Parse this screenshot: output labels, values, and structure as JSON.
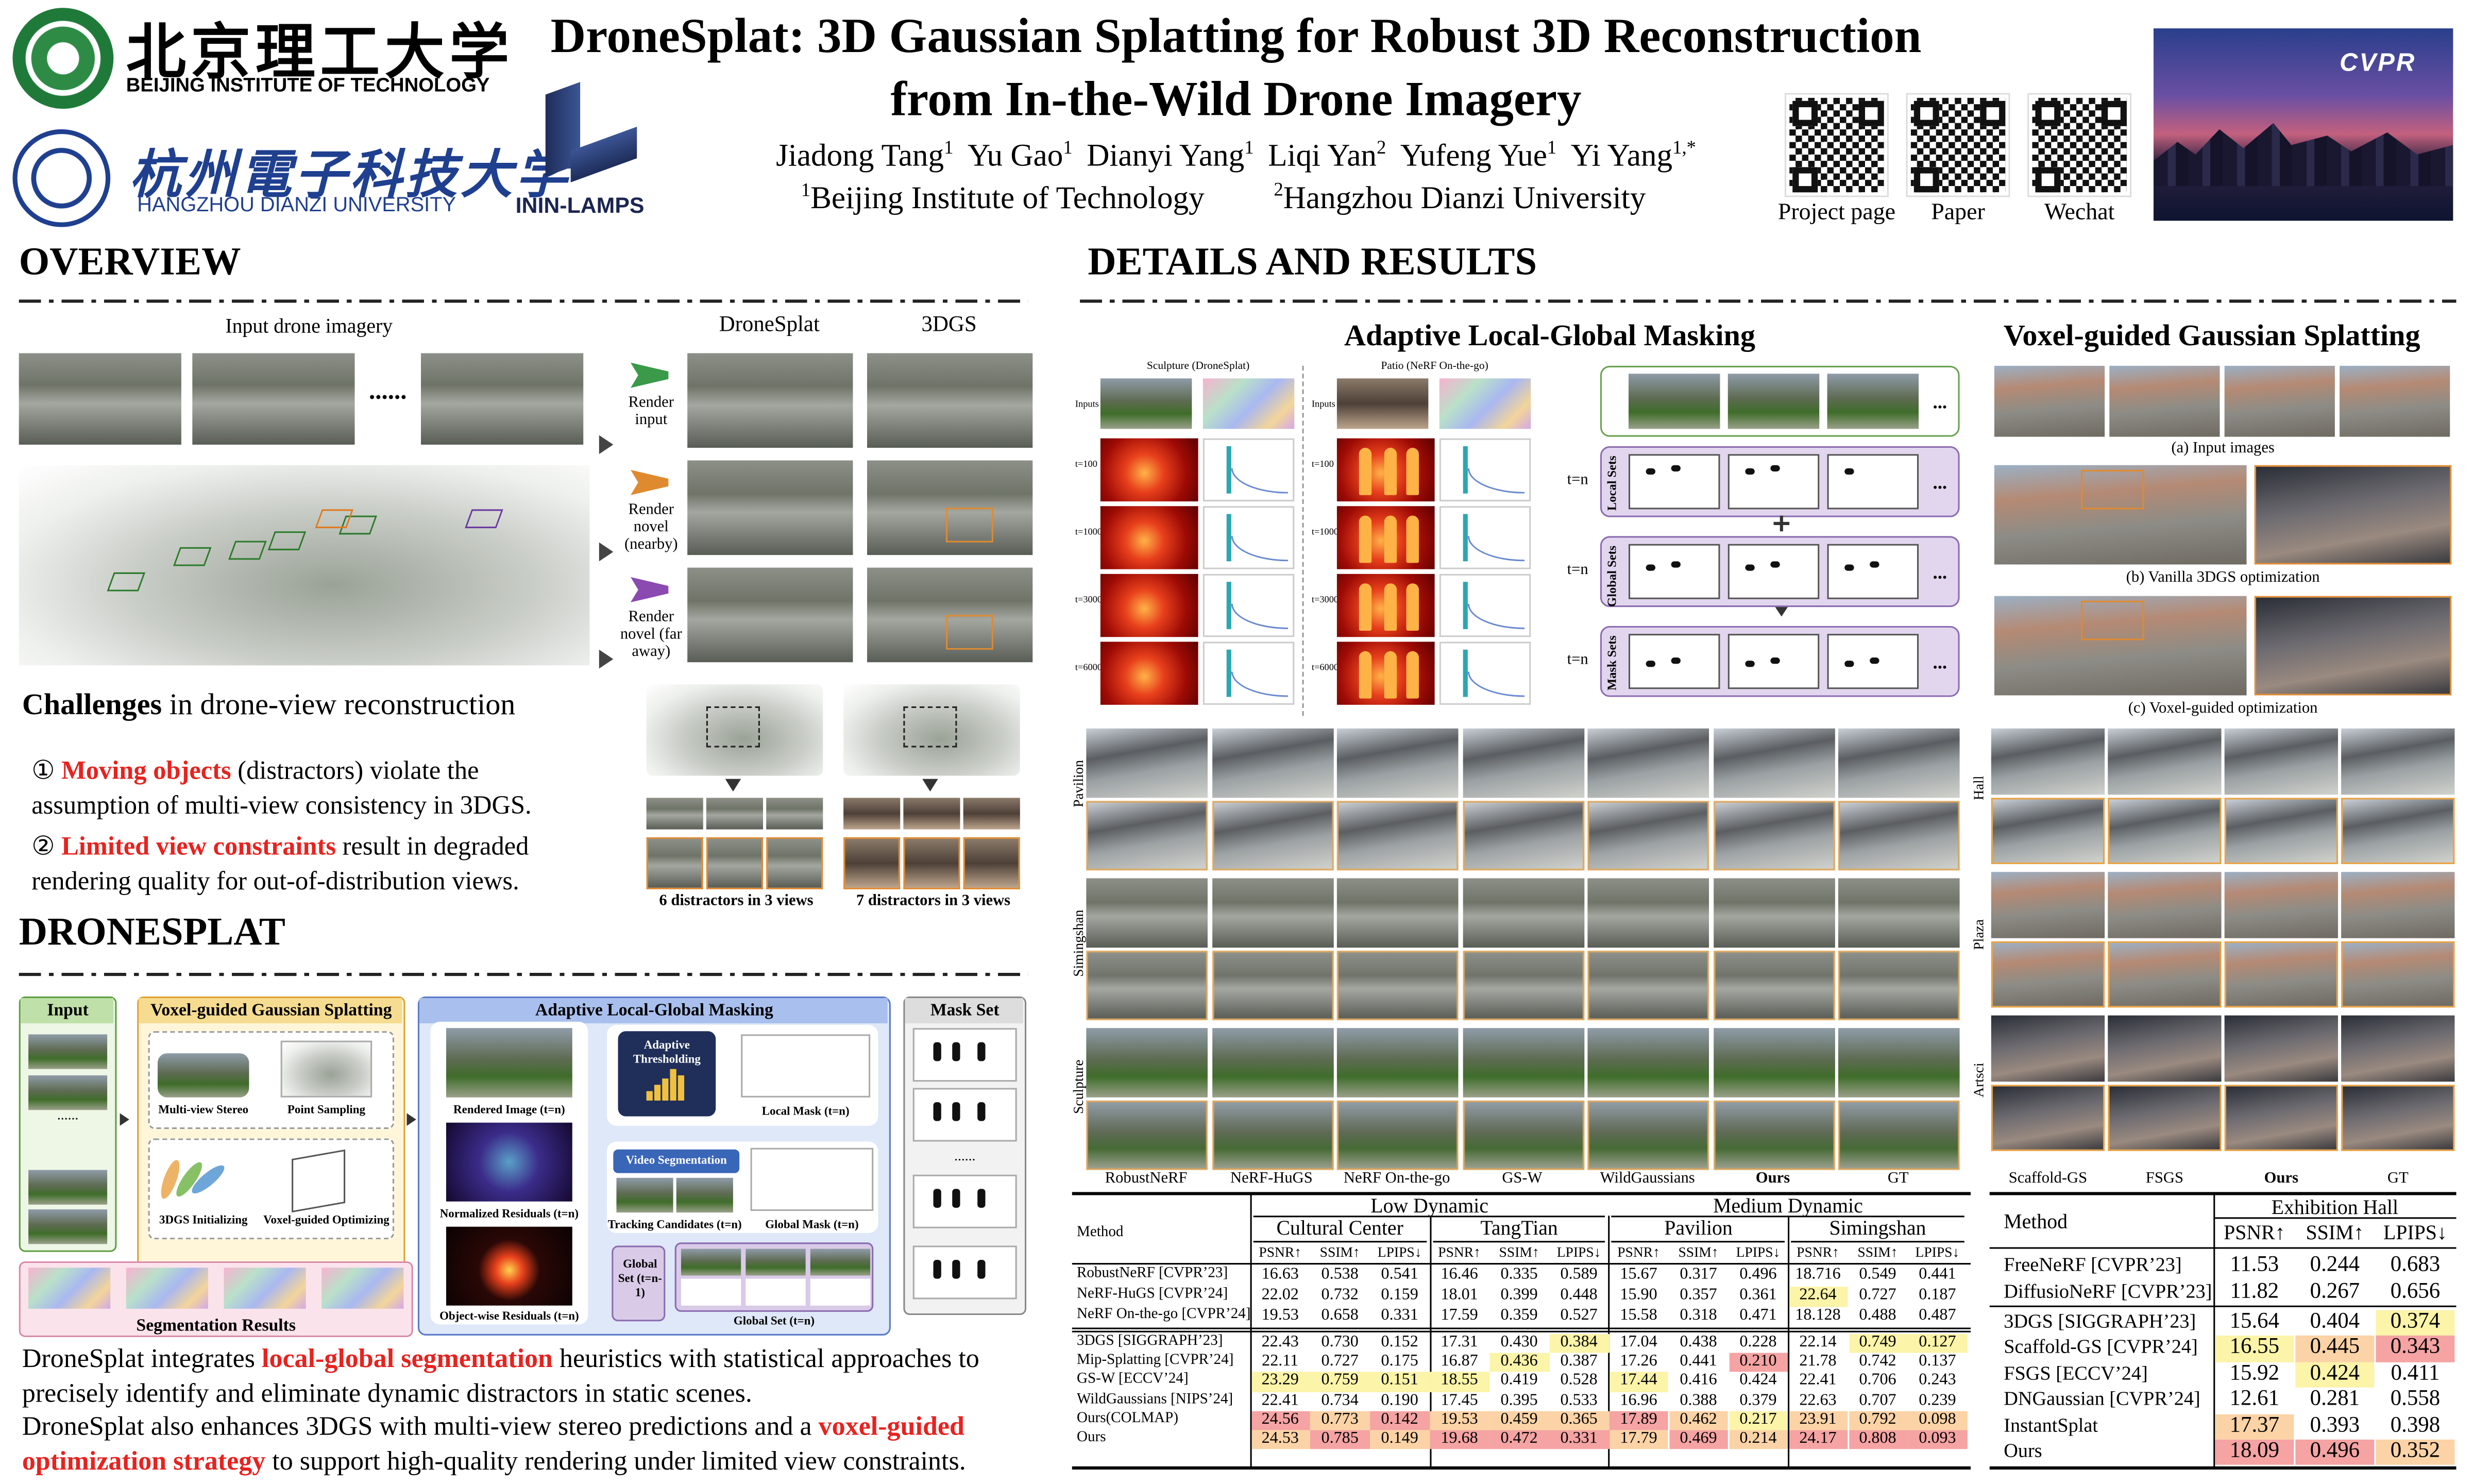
{
  "header": {
    "bit_name_cn": "北京理工大学",
    "bit_name_en": "BEIJING INSTITUTE OF TECHNOLOGY",
    "hdu_name_cn": "杭州電子科技大学",
    "hdu_name_en": "HANGZHOU DIANZI UNIVERSITY",
    "lab": "ININ-LAMPS",
    "title_line1": "DroneSplat: 3D Gaussian Splatting for Robust 3D Reconstruction",
    "title_line2": "from In-the-Wild Drone Imagery",
    "authors": [
      {
        "name": "Jiadong Tang",
        "affiliation": "1"
      },
      {
        "name": "Yu Gao",
        "affiliation": "1"
      },
      {
        "name": "Dianyi Yang",
        "affiliation": "1"
      },
      {
        "name": "Liqi Yan",
        "affiliation": "2"
      },
      {
        "name": "Yufeng Yue",
        "affiliation": "1"
      },
      {
        "name": "Yi Yang",
        "affiliation": "1,*"
      }
    ],
    "affiliations": [
      {
        "mark": "1",
        "name": "Beijing Institute of Technology"
      },
      {
        "mark": "2",
        "name": "Hangzhou Dianzi University"
      }
    ],
    "qr_labels": [
      "Project page",
      "Paper",
      "Wechat"
    ],
    "banner": "CVPR"
  },
  "overview": {
    "title": "OVERVIEW",
    "input_label": "Input drone imagery",
    "ellipsis": "......",
    "method_labels": [
      "DroneSplat",
      "3DGS"
    ],
    "render_labels": [
      "Render input",
      "Render novel (nearby)",
      "Render novel (far away)"
    ],
    "challenges": {
      "heading_bold": "Challenges",
      "heading_rest": "in drone-view reconstruction",
      "items": [
        {
          "marker": "①",
          "highlight": "Moving objects",
          "text": "(distractors)  violate the assumption of multi-view consistency in 3DGS."
        },
        {
          "marker": "②",
          "highlight": "Limited view constraints",
          "text": "result in degraded rendering quality for out-of-distribution views."
        }
      ],
      "highlight_color": "#e8221f"
    },
    "distractor_captions": [
      "6 distractors in 3 views",
      "7 distractors in 3 views"
    ]
  },
  "dronesplat": {
    "title": "DRONESPLAT",
    "diagram": {
      "input": "Input",
      "vgs": "Voxel-guided Gaussian Splatting",
      "mvs": "Multi-view Stereo",
      "sampling": "Point Sampling",
      "init": "3DGS Initializing",
      "optimizing": "Voxel-guided Optimizing",
      "masking": "Adaptive Local-Global Masking",
      "rendered": "Rendered Image (t=n)",
      "normalized": "Normalized Residuals (t=n)",
      "objectwise": "Object-wise Residuals (t=n)",
      "thresholding": "Adaptive Thresholding",
      "local_mask": "Local Mask (t=n)",
      "video_seg": "Video Segmentation",
      "tracking": "Tracking Candidates (t=n)",
      "global_mask": "Global Mask (t=n)",
      "global_prev": "Global Set (t=n-1)",
      "global_set": "Global Set (t=n)",
      "mask_set": "Mask Set",
      "seg_results": "Segmentation Results",
      "ellipsis": "......"
    },
    "paragraphs": [
      [
        {
          "text": "DroneSplat integrates"
        },
        {
          "text": "local-global segmentation",
          "color": "#e8221f"
        },
        {
          "text": "heuristics with statistical approaches to precisely identify and eliminate dynamic distractors in static scenes."
        }
      ],
      [
        {
          "text": "DroneSplat also enhances 3DGS with multi-view stereo predictions and a"
        },
        {
          "text": "voxel-guided optimization strategy",
          "color": "#e8221f"
        },
        {
          "text": "to support high-quality rendering under limited view constraints."
        }
      ]
    ]
  },
  "details": {
    "title": "DETAILS AND RESULTS",
    "masking": {
      "title": "Adaptive Local-Global Masking",
      "scenes": [
        "Sculpture (DroneSplat)",
        "Patio (NeRF On-the-go)"
      ],
      "row_labels": [
        "Inputs",
        "t=100",
        "t=1000",
        "t=3000",
        "t=6000"
      ],
      "step_label": "t=n",
      "set_labels": [
        "Local Sets",
        "Global Sets",
        "Mask Sets"
      ],
      "ellipsis": "..."
    },
    "voxel": {
      "title": "Voxel-guided Gaussian Splatting",
      "captions": [
        "(a) Input images",
        "(b) Vanilla 3DGS optimization",
        "(c) Voxel-guided optimization"
      ]
    },
    "comparison": {
      "scenes": [
        "Pavilion",
        "Simingshan",
        "Sculpture"
      ],
      "methods": [
        "RobustNeRF",
        "NeRF-HuGS",
        "NeRF On-the-go",
        "GS-W",
        "WildGaussians",
        "Ours",
        "GT"
      ]
    },
    "sparse_comparison": {
      "scenes": [
        "Hall",
        "Plaza",
        "Artsci"
      ],
      "methods": [
        "Scaffold-GS",
        "FSGS",
        "Ours",
        "GT"
      ]
    },
    "main_table": {
      "method_header": "Method",
      "groups": [
        {
          "name": "Low Dynamic",
          "datasets": [
            "Cultural Center",
            "TangTian"
          ]
        },
        {
          "name": "Medium Dynamic",
          "datasets": [
            "Pavilion",
            "Simingshan"
          ]
        }
      ],
      "metrics": [
        "PSNR↑",
        "SSIM↑",
        "LPIPS↓"
      ],
      "row_groups": [
        [
          {
            "method": "RobustNeRF [CVPR’23]",
            "cells": [
              "16.63",
              "0.538",
              "0.541",
              "16.46",
              "0.335",
              "0.589",
              "15.67",
              "0.317",
              "0.496",
              "18.716",
              "0.549",
              "0.441"
            ]
          },
          {
            "method": "NeRF-HuGS [CVPR’24]",
            "cells": [
              "22.02",
              "0.732",
              "0.159",
              "18.01",
              "0.399",
              "0.448",
              "15.90",
              "0.357",
              "0.361",
              {
                "text": "22.64",
                "color": "#fbf4a9"
              },
              "0.727",
              "0.187"
            ]
          },
          {
            "method": "NeRF On-the-go [CVPR’24]",
            "cells": [
              "19.53",
              "0.658",
              "0.331",
              "17.59",
              "0.359",
              "0.527",
              "15.58",
              "0.318",
              "0.471",
              "18.128",
              "0.488",
              "0.487"
            ]
          }
        ],
        [
          {
            "method": "3DGS [SIGGRAPH’23]",
            "cells": [
              "22.43",
              "0.730",
              "0.152",
              "17.31",
              "0.430",
              {
                "text": "0.384",
                "color": "#fbf4a9"
              },
              "17.04",
              "0.438",
              "0.228",
              "22.14",
              {
                "text": "0.749",
                "color": "#fbf4a9"
              },
              {
                "text": "0.127",
                "color": "#fbf4a9"
              }
            ]
          },
          {
            "method": "Mip-Splatting [CVPR’24]",
            "cells": [
              "22.11",
              "0.727",
              "0.175",
              "16.87",
              {
                "text": "0.436",
                "color": "#fbf4a9"
              },
              "0.387",
              "17.26",
              "0.441",
              {
                "text": "0.210",
                "color": "#f5a3a3"
              },
              "21.78",
              "0.742",
              "0.137"
            ]
          },
          {
            "method": "GS-W [ECCV’24]",
            "cells": [
              {
                "text": "23.29",
                "color": "#fbf4a9"
              },
              {
                "text": "0.759",
                "color": "#fbf4a9"
              },
              {
                "text": "0.151",
                "color": "#fbf4a9"
              },
              {
                "text": "18.55",
                "color": "#fbf4a9"
              },
              "0.419",
              "0.528",
              {
                "text": "17.44",
                "color": "#fbf4a9"
              },
              "0.416",
              "0.424",
              "22.41",
              "0.706",
              "0.243"
            ]
          },
          {
            "method": "WildGaussians [NIPS’24]",
            "cells": [
              "22.41",
              "0.734",
              "0.190",
              "17.45",
              "0.395",
              "0.533",
              "16.96",
              "0.388",
              "0.379",
              "22.63",
              "0.707",
              "0.239"
            ]
          },
          {
            "method": "Ours(COLMAP)",
            "cells": [
              {
                "text": "24.56",
                "color": "#f5a3a3"
              },
              {
                "text": "0.773",
                "color": "#fbd3a6"
              },
              {
                "text": "0.142",
                "color": "#f5a3a3"
              },
              {
                "text": "19.53",
                "color": "#fbd3a6"
              },
              {
                "text": "0.459",
                "color": "#fbd3a6"
              },
              {
                "text": "0.365",
                "color": "#fbd3a6"
              },
              {
                "text": "17.89",
                "color": "#f5a3a3"
              },
              {
                "text": "0.462",
                "color": "#fbd3a6"
              },
              {
                "text": "0.217",
                "color": "#fbf4a9"
              },
              {
                "text": "23.91",
                "color": "#fbd3a6"
              },
              {
                "text": "0.792",
                "color": "#fbd3a6"
              },
              {
                "text": "0.098",
                "color": "#fbd3a6"
              }
            ]
          },
          {
            "method": "Ours",
            "cells": [
              {
                "text": "24.53",
                "color": "#fbd3a6"
              },
              {
                "text": "0.785",
                "color": "#f5a3a3"
              },
              {
                "text": "0.149",
                "color": "#fbd3a6"
              },
              {
                "text": "19.68",
                "color": "#f5a3a3"
              },
              {
                "text": "0.472",
                "color": "#f5a3a3"
              },
              {
                "text": "0.331",
                "color": "#f5a3a3"
              },
              {
                "text": "17.79",
                "color": "#fbd3a6"
              },
              {
                "text": "0.469",
                "color": "#f5a3a3"
              },
              {
                "text": "0.214",
                "color": "#fbd3a6"
              },
              {
                "text": "24.17",
                "color": "#f5a3a3"
              },
              {
                "text": "0.808",
                "color": "#f5a3a3"
              },
              {
                "text": "0.093",
                "color": "#f5a3a3"
              }
            ]
          }
        ]
      ]
    },
    "sparse_table": {
      "method_header": "Method",
      "dataset": "Exhibition Hall",
      "metrics": [
        "PSNR↑",
        "SSIM↑",
        "LPIPS↓"
      ],
      "row_groups": [
        [
          {
            "method": "FreeNeRF [CVPR’23]",
            "cells": [
              "11.53",
              "0.244",
              "0.683"
            ]
          },
          {
            "method": "DiffusioNeRF [CVPR’23]",
            "cells": [
              "11.82",
              "0.267",
              "0.656"
            ]
          }
        ],
        [
          {
            "method": "3DGS [SIGGRAPH’23]",
            "cells": [
              "15.64",
              "0.404",
              {
                "text": "0.374",
                "color": "#fbf4a9"
              }
            ]
          },
          {
            "method": "Scaffold-GS [CVPR’24]",
            "cells": [
              {
                "text": "16.55",
                "color": "#fbf4a9"
              },
              {
                "text": "0.445",
                "color": "#fbd3a6"
              },
              {
                "text": "0.343",
                "color": "#f5a3a3"
              }
            ]
          },
          {
            "method": "FSGS [ECCV’24]",
            "cells": [
              "15.92",
              {
                "text": "0.424",
                "color": "#fbf4a9"
              },
              "0.411"
            ]
          },
          {
            "method": "DNGaussian [CVPR’24]",
            "cells": [
              "12.61",
              "0.281",
              "0.558"
            ]
          },
          {
            "method": "InstantSplat",
            "cells": [
              {
                "text": "17.37",
                "color": "#fbd3a6"
              },
              "0.393",
              "0.398"
            ]
          },
          {
            "method": "Ours",
            "cells": [
              {
                "text": "18.09",
                "color": "#f5a3a3"
              },
              {
                "text": "0.496",
                "color": "#f5a3a3"
              },
              {
                "text": "0.352",
                "color": "#fbd3a6"
              }
            ]
          }
        ]
      ]
    }
  }
}
